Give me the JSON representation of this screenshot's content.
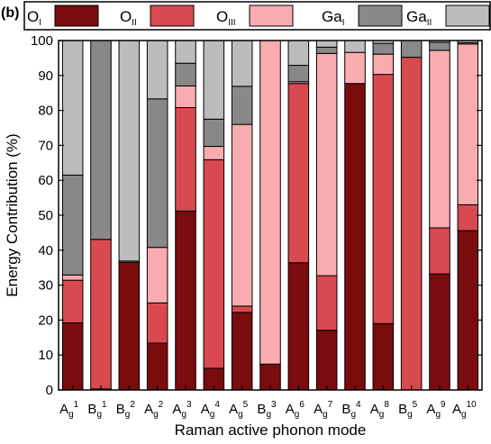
{
  "panel_label": "(b)",
  "colors": {
    "O_I": "#7a0c0e",
    "O_II": "#d84a4f",
    "O_III": "#f9acb0",
    "Ga_I": "#888888",
    "Ga_II": "#bcbcbc"
  },
  "chart_data": {
    "type": "bar",
    "stacked": true,
    "xlabel": "Raman active phonon mode",
    "ylabel": "Energy Contribution (%)",
    "ylim": [
      0,
      100
    ],
    "yticks": [
      0,
      10,
      20,
      30,
      40,
      50,
      60,
      70,
      80,
      90,
      100
    ],
    "legend_position": "top",
    "categories": [
      {
        "base": "A",
        "sub": "g",
        "sup": "1"
      },
      {
        "base": "B",
        "sub": "g",
        "sup": "1"
      },
      {
        "base": "B",
        "sub": "g",
        "sup": "2"
      },
      {
        "base": "A",
        "sub": "g",
        "sup": "2"
      },
      {
        "base": "A",
        "sub": "g",
        "sup": "3"
      },
      {
        "base": "A",
        "sub": "g",
        "sup": "4"
      },
      {
        "base": "A",
        "sub": "g",
        "sup": "5"
      },
      {
        "base": "B",
        "sub": "g",
        "sup": "3"
      },
      {
        "base": "A",
        "sub": "g",
        "sup": "6"
      },
      {
        "base": "A",
        "sub": "g",
        "sup": "7"
      },
      {
        "base": "B",
        "sub": "g",
        "sup": "4"
      },
      {
        "base": "A",
        "sub": "g",
        "sup": "8"
      },
      {
        "base": "B",
        "sub": "g",
        "sup": "5"
      },
      {
        "base": "A",
        "sub": "g",
        "sup": "9"
      },
      {
        "base": "A",
        "sub": "g",
        "sup": "10"
      }
    ],
    "series": [
      {
        "key": "O_I",
        "name": "O",
        "name_sub": "I",
        "values": [
          19.2,
          0.3,
          36.5,
          13.4,
          51.2,
          6.2,
          22.2,
          7.4,
          36.4,
          17.1,
          87.7,
          19.0,
          0,
          33.2,
          45.6
        ]
      },
      {
        "key": "O_II",
        "name": "O",
        "name_sub": "II",
        "values": [
          12.2,
          42.8,
          0,
          11.5,
          29.6,
          59.7,
          1.8,
          0,
          51.3,
          15.6,
          0,
          71.3,
          95.2,
          13.2,
          7.4
        ]
      },
      {
        "key": "O_III",
        "name": "O",
        "name_sub": "III",
        "values": [
          1.5,
          0,
          0,
          15.9,
          6.2,
          3.8,
          52.0,
          92.6,
          0.5,
          63.6,
          8.9,
          5.8,
          0,
          50.8,
          46.0
        ]
      },
      {
        "key": "Ga_I",
        "name": "Ga",
        "name_sub": "I",
        "values": [
          28.6,
          56.9,
          0.4,
          42.5,
          6.5,
          7.8,
          10.9,
          0,
          4.7,
          1.8,
          0,
          3.1,
          4.8,
          2.3,
          0.4
        ]
      },
      {
        "key": "Ga_II",
        "name": "Ga",
        "name_sub": "II",
        "values": [
          38.5,
          0,
          63.1,
          16.7,
          6.5,
          22.5,
          13.1,
          0,
          7.1,
          1.9,
          3.4,
          0.8,
          0,
          0.5,
          0.6
        ]
      }
    ]
  }
}
